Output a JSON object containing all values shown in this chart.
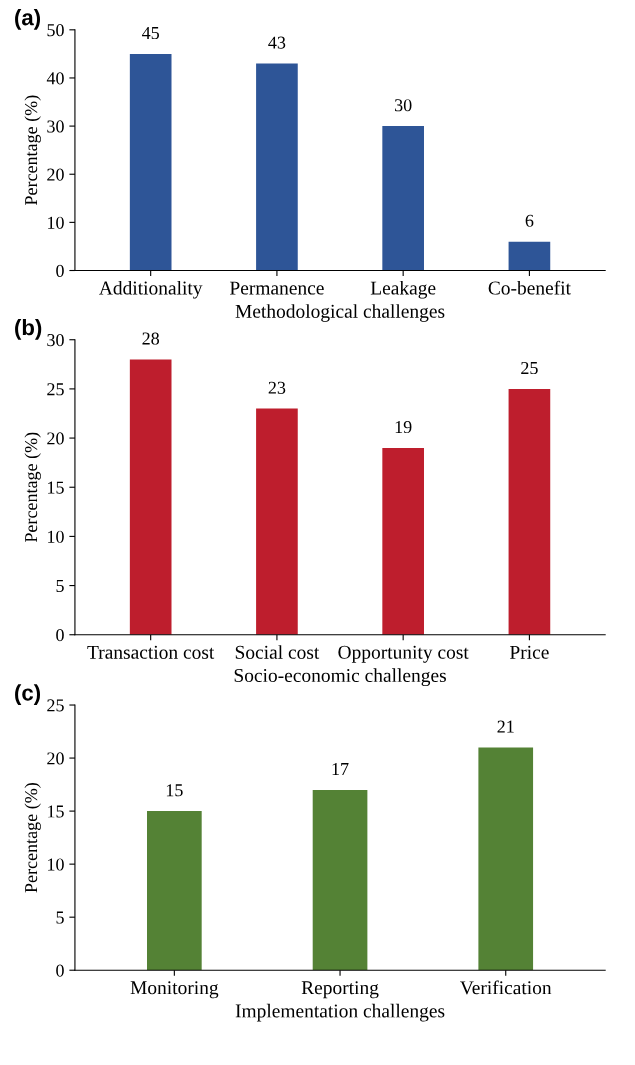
{
  "chart_data": [
    {
      "type": "bar",
      "title": "(a)",
      "xlabel": "Methodological challenges",
      "ylabel": "Percentage (%)",
      "categories": [
        "Additionality",
        "Permanence",
        "Leakage",
        "Co-benefit"
      ],
      "values": [
        45,
        43,
        30,
        6
      ],
      "color": "#2e5597",
      "ylim": [
        0,
        50
      ],
      "yticks": [
        0,
        10,
        20,
        30,
        40,
        50
      ],
      "data_labels": true
    },
    {
      "type": "bar",
      "title": "(b)",
      "xlabel": "Socio-economic challenges",
      "ylabel": "Percentage (%)",
      "categories": [
        "Transaction cost",
        "Social cost",
        "Opportunity cost",
        "Price"
      ],
      "values": [
        28,
        23,
        19,
        25
      ],
      "color": "#be1e2d",
      "ylim": [
        0,
        30
      ],
      "yticks": [
        0,
        5,
        10,
        15,
        20,
        25,
        30
      ],
      "data_labels": true
    },
    {
      "type": "bar",
      "title": "(c)",
      "xlabel": "Implementation challenges",
      "ylabel": "Percentage (%)",
      "categories": [
        "Monitoring",
        "Reporting",
        "Verification"
      ],
      "values": [
        15,
        17,
        21
      ],
      "color": "#548235",
      "ylim": [
        0,
        25
      ],
      "yticks": [
        0,
        5,
        10,
        15,
        20,
        25
      ],
      "data_labels": true
    }
  ]
}
